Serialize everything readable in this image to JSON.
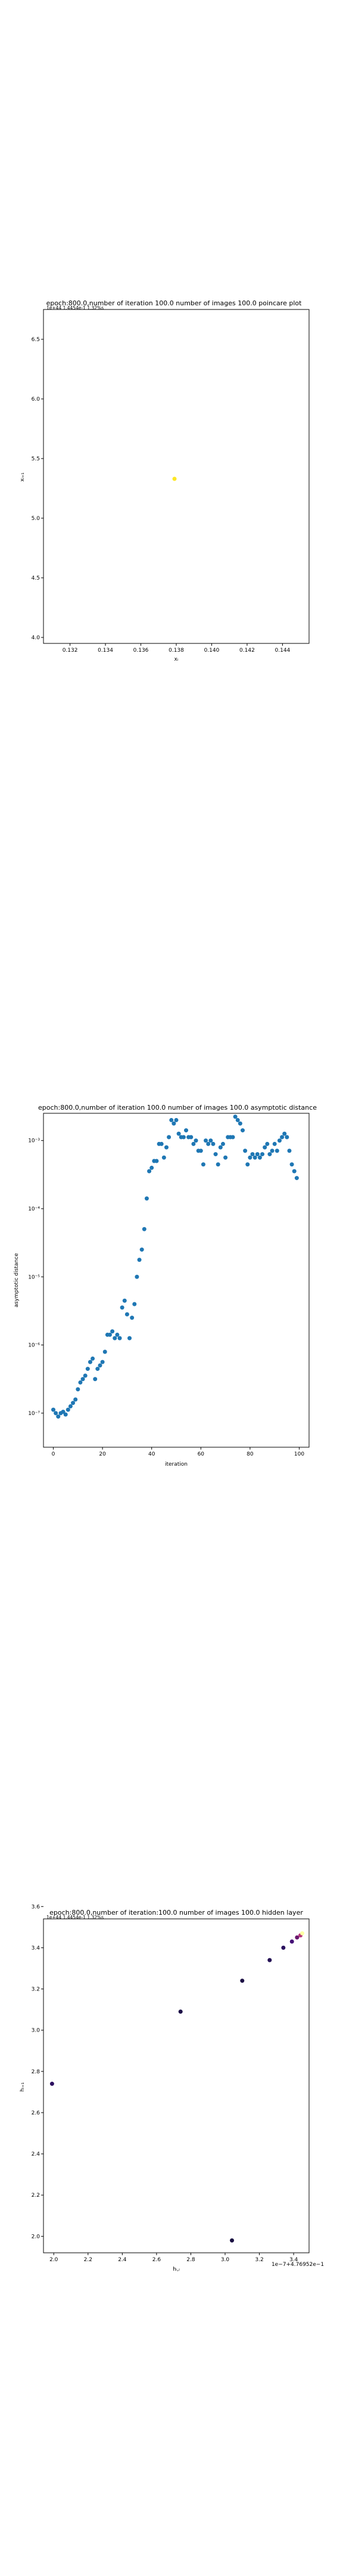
{
  "chart_data": [
    {
      "type": "scatter",
      "title": "epoch:800.0,number of iteration 100.0 number of images 100.0 poincare plot",
      "overlay_text": "1e+44 1.4454e-1 1.32%s",
      "xlabel": "xᵢ",
      "ylabel": "xᵢ₊₁",
      "xlim": [
        0.1305,
        0.1455
      ],
      "ylim": [
        3.95,
        6.75
      ],
      "x_ticks": [
        "0.132",
        "0.134",
        "0.136",
        "0.138",
        "0.140",
        "0.142",
        "0.144"
      ],
      "y_ticks": [
        "4.0",
        "4.5",
        "5.0",
        "5.5",
        "6.0",
        "6.5"
      ],
      "points": [
        {
          "x": 0.1379,
          "y": 5.33,
          "color": "#fde725"
        }
      ]
    },
    {
      "type": "scatter",
      "title": "epoch:800.0,number of iteration 100.0  number of images 100.0 asymptotic distance",
      "xlabel": "iteration",
      "ylabel": "asymptotic distance",
      "xlim": [
        -4,
        104
      ],
      "y_log_exp_range": [
        -7.5,
        -2.6
      ],
      "x_ticks": [
        "0",
        "20",
        "40",
        "60",
        "80",
        "100"
      ],
      "y_ticks": [
        "10⁻⁷",
        "10⁻⁶",
        "10⁻⁵",
        "10⁻⁴",
        "10⁻³"
      ],
      "color": "#1f77b4",
      "log10_y": [
        -6.95,
        -7.0,
        -7.05,
        -7.0,
        -6.98,
        -7.02,
        -6.95,
        -6.9,
        -6.85,
        -6.8,
        -6.65,
        -6.55,
        -6.5,
        -6.45,
        -6.35,
        -6.25,
        -6.2,
        -6.5,
        -6.35,
        -6.3,
        -6.25,
        -6.1,
        -5.85,
        -5.85,
        -5.8,
        -5.9,
        -5.85,
        -5.9,
        -5.45,
        -5.35,
        -5.55,
        -5.9,
        -5.6,
        -5.4,
        -5.0,
        -4.75,
        -4.6,
        -4.3,
        -3.85,
        -3.45,
        -3.4,
        -3.3,
        -3.3,
        -3.05,
        -3.05,
        -3.25,
        -3.1,
        -2.95,
        -2.7,
        -2.75,
        -2.7,
        -2.9,
        -2.95,
        -2.95,
        -2.85,
        -2.95,
        -2.95,
        -3.05,
        -3.0,
        -3.15,
        -3.15,
        -3.35,
        -3.0,
        -3.05,
        -3.0,
        -3.05,
        -3.2,
        -3.35,
        -3.1,
        -3.05,
        -3.25,
        -2.95,
        -2.95,
        -2.95,
        -2.65,
        -2.7,
        -2.75,
        -2.85,
        -3.15,
        -3.35,
        -3.25,
        -3.2,
        -3.25,
        -3.2,
        -3.25,
        -3.2,
        -3.1,
        -3.05,
        -3.2,
        -3.15,
        -3.05,
        -3.15,
        -3.0,
        -2.95,
        -2.9,
        -2.95,
        -3.15,
        -3.35,
        -3.45,
        -3.55
      ],
      "x": [
        0,
        1,
        2,
        3,
        4,
        5,
        6,
        7,
        8,
        9,
        10,
        11,
        12,
        13,
        14,
        15,
        16,
        17,
        18,
        19,
        20,
        21,
        22,
        23,
        24,
        25,
        26,
        27,
        28,
        29,
        30,
        31,
        32,
        33,
        34,
        35,
        36,
        37,
        38,
        39,
        40,
        41,
        42,
        43,
        44,
        45,
        46,
        47,
        48,
        49,
        50,
        51,
        52,
        53,
        54,
        55,
        56,
        57,
        58,
        59,
        60,
        61,
        62,
        63,
        64,
        65,
        66,
        67,
        68,
        69,
        70,
        71,
        72,
        73,
        74,
        75,
        76,
        77,
        78,
        79,
        80,
        81,
        82,
        83,
        84,
        85,
        86,
        87,
        88,
        89,
        90,
        91,
        92,
        93,
        94,
        95,
        96,
        97,
        98,
        99
      ]
    },
    {
      "type": "scatter",
      "title": "epoch:800.0,number of iteration:100.0  number of images 100.0 hidden layer",
      "overlay_text": "1e+44 1.4454e-1 1.32%s",
      "xlabel": "hᵢ,ᵢ",
      "ylabel": "hᵢ₊₁",
      "offset_label": "1e−7+4.76952e−1",
      "xlim": [
        1.94,
        3.49
      ],
      "ylim": [
        1.92,
        3.54
      ],
      "x_ticks": [
        "2.0",
        "2.2",
        "2.4",
        "2.6",
        "2.8",
        "3.0",
        "3.2",
        "3.4"
      ],
      "y_ticks": [
        "2.0",
        "2.2",
        "2.4",
        "2.6",
        "2.8",
        "3.0",
        "3.2",
        "3.4",
        "3.6"
      ],
      "points": [
        {
          "x": 1.99,
          "y": 2.74,
          "color": "#2d1160"
        },
        {
          "x": 2.74,
          "y": 3.09,
          "color": "#1d1147"
        },
        {
          "x": 3.04,
          "y": 1.98,
          "color": "#1a1042"
        },
        {
          "x": 3.1,
          "y": 3.24,
          "color": "#1c1044"
        },
        {
          "x": 3.26,
          "y": 3.34,
          "color": "#251255"
        },
        {
          "x": 3.34,
          "y": 3.4,
          "color": "#2b115e"
        },
        {
          "x": 3.39,
          "y": 3.43,
          "color": "#451077"
        },
        {
          "x": 3.42,
          "y": 3.45,
          "color": "#6a176e"
        },
        {
          "x": 3.44,
          "y": 3.46,
          "color": "#b5367a"
        },
        {
          "x": 3.45,
          "y": 3.47,
          "color": "#fcffa4"
        }
      ]
    }
  ]
}
